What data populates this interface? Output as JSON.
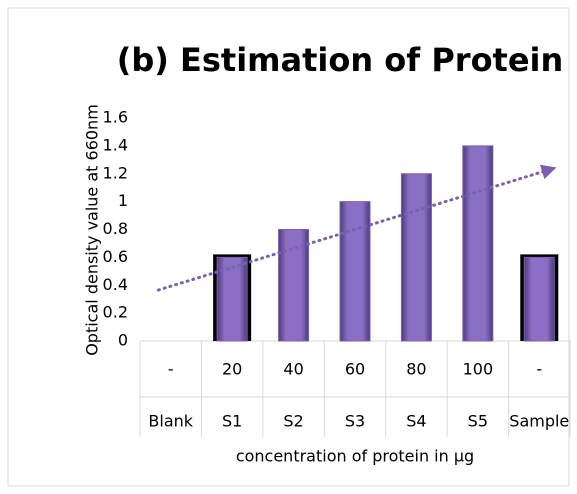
{
  "chart_data": {
    "type": "bar",
    "title": "(b) Estimation of Protein",
    "ylabel": "Optical density value at 660nm",
    "xlabel": "concentration of protein in µg",
    "categories": [
      "Blank",
      "S1",
      "S2",
      "S3",
      "S4",
      "S5",
      "Sample"
    ],
    "concentrations": [
      "-",
      "20",
      "40",
      "60",
      "80",
      "100",
      "-"
    ],
    "values": [
      0,
      0.6,
      0.8,
      1,
      1.2,
      1.4,
      0.6
    ],
    "outlined": [
      false,
      true,
      false,
      false,
      false,
      false,
      true
    ],
    "color": "#7b5fb3",
    "trendline": true,
    "ylim": [
      0,
      1.6
    ],
    "yticks": [
      0,
      0.2,
      0.4,
      0.6,
      0.8,
      1,
      1.2,
      1.4,
      1.6
    ],
    "grid": false
  }
}
